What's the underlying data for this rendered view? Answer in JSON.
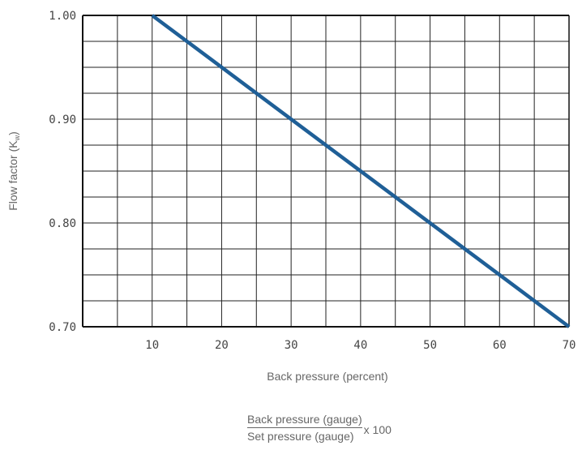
{
  "chart_data": {
    "type": "line",
    "title": "",
    "xlabel": "Back pressure (percent)",
    "ylabel_main": "Flow factor (K",
    "ylabel_sub": "w",
    "ylabel_end": ")",
    "xlim": [
      0,
      70
    ],
    "ylim": [
      0.7,
      1.0
    ],
    "x_ticks": [
      10,
      20,
      30,
      40,
      50,
      60,
      70
    ],
    "x_tick_labels": [
      "10",
      "20",
      "30",
      "40",
      "50",
      "60",
      "70"
    ],
    "y_ticks": [
      0.7,
      0.8,
      0.9,
      1.0
    ],
    "y_tick_labels": [
      "0.70",
      "0.80",
      "0.90",
      "1.00"
    ],
    "x_grid_step": 5,
    "y_grid_step": 0.025,
    "grid": true,
    "series": [
      {
        "x": [
          10,
          70
        ],
        "y": [
          1.0,
          0.7
        ]
      }
    ],
    "line_color": "#1f5f97"
  },
  "formula": {
    "numerator": "Back pressure (gauge)",
    "denominator": "Set pressure (gauge)",
    "multiplier": "x 100"
  }
}
